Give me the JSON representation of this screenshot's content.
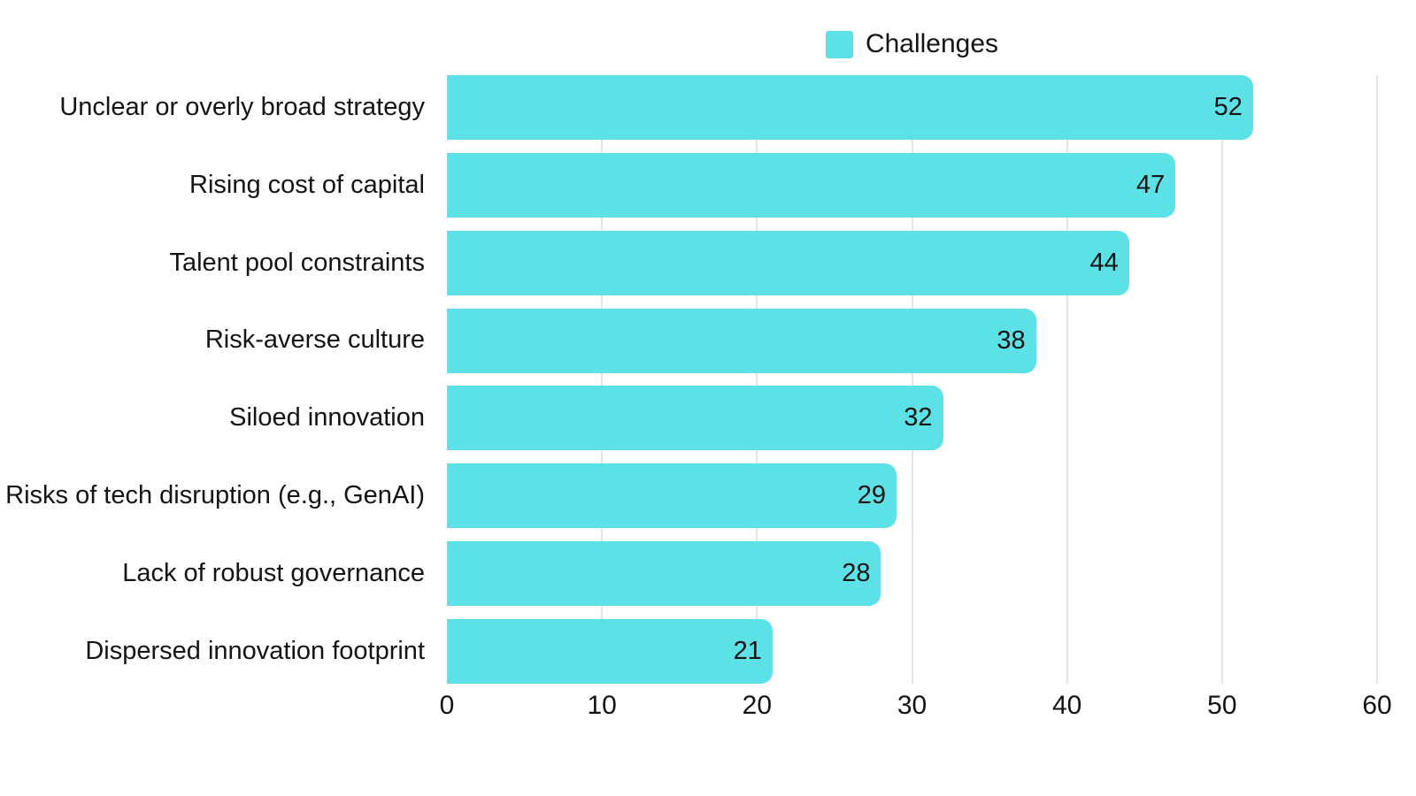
{
  "colors": {
    "bar": "#5CE1E6",
    "gridline": "#E4E4E4",
    "text": "#141414",
    "background": "#FFFFFF"
  },
  "legend": {
    "label": "Challenges"
  },
  "chart_data": {
    "type": "bar",
    "orientation": "horizontal",
    "title": "",
    "categories": [
      "Unclear or overly broad strategy",
      "Rising cost of capital",
      "Talent pool constraints",
      "Risk-averse culture",
      "Siloed innovation",
      "Risks of tech disruption (e.g., GenAI)",
      "Lack of robust governance",
      "Dispersed innovation footprint"
    ],
    "series": [
      {
        "name": "Challenges",
        "color": "#5CE1E6",
        "values": [
          52,
          47,
          44,
          38,
          32,
          29,
          28,
          21
        ]
      }
    ],
    "xlim": [
      0,
      60
    ],
    "xticks": [
      0,
      10,
      20,
      30,
      40,
      50,
      60
    ],
    "grid": "vertical",
    "gridline_at_zero": false,
    "legend_position": "top-center",
    "value_labels": "inside-end"
  }
}
